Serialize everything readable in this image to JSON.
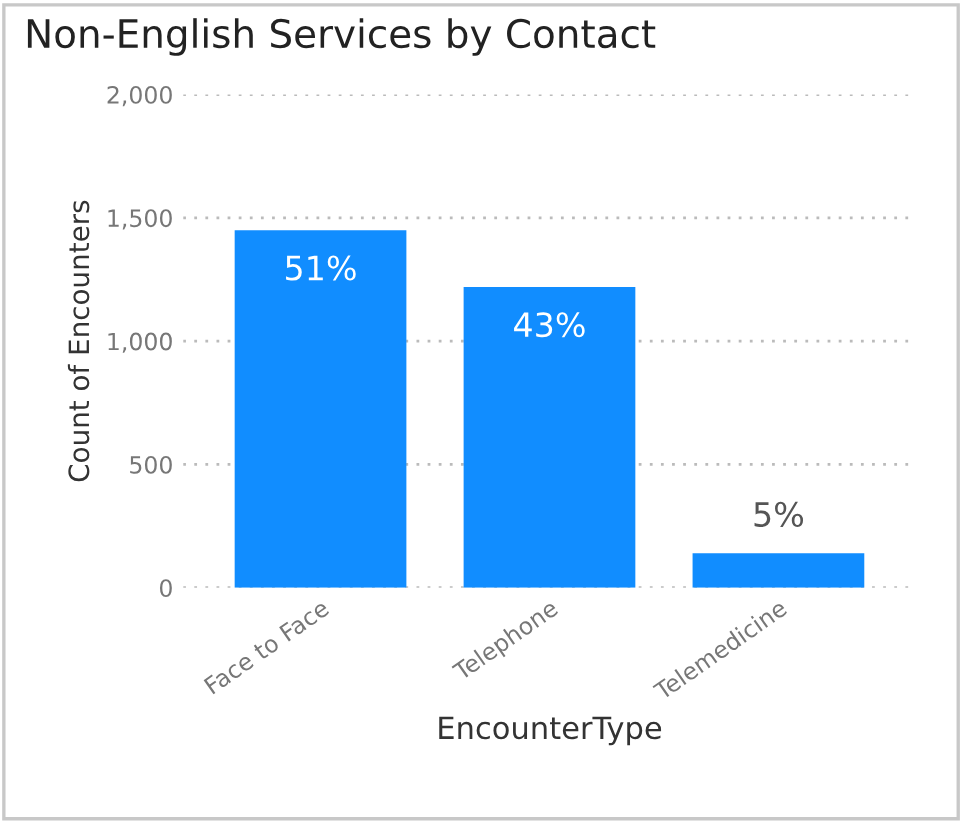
{
  "chart_data": {
    "type": "bar",
    "title": "Non-English Services by Contact",
    "xlabel": "EncounterType",
    "ylabel": "Count of Encounters",
    "categories": [
      "Face to Face",
      "Telephone",
      "Telemedicine"
    ],
    "values": [
      1450,
      1220,
      140
    ],
    "annotations": [
      {
        "text": "51%",
        "x": "Face to Face",
        "y": 1450
      },
      {
        "text": "43%",
        "x": "Telephone",
        "y": 1220
      },
      {
        "text": "5%",
        "x": "Telemedicine",
        "y": 140
      }
    ],
    "color": "#118dff",
    "ylim": [
      0,
      2000
    ],
    "yticks": [
      {
        "value": 0,
        "label": "0"
      },
      {
        "value": 500,
        "label": "500"
      },
      {
        "value": 1000,
        "label": "1,000"
      },
      {
        "value": 1500,
        "label": "1,500"
      },
      {
        "value": 2000,
        "label": "2,000"
      }
    ],
    "grid": "y"
  }
}
